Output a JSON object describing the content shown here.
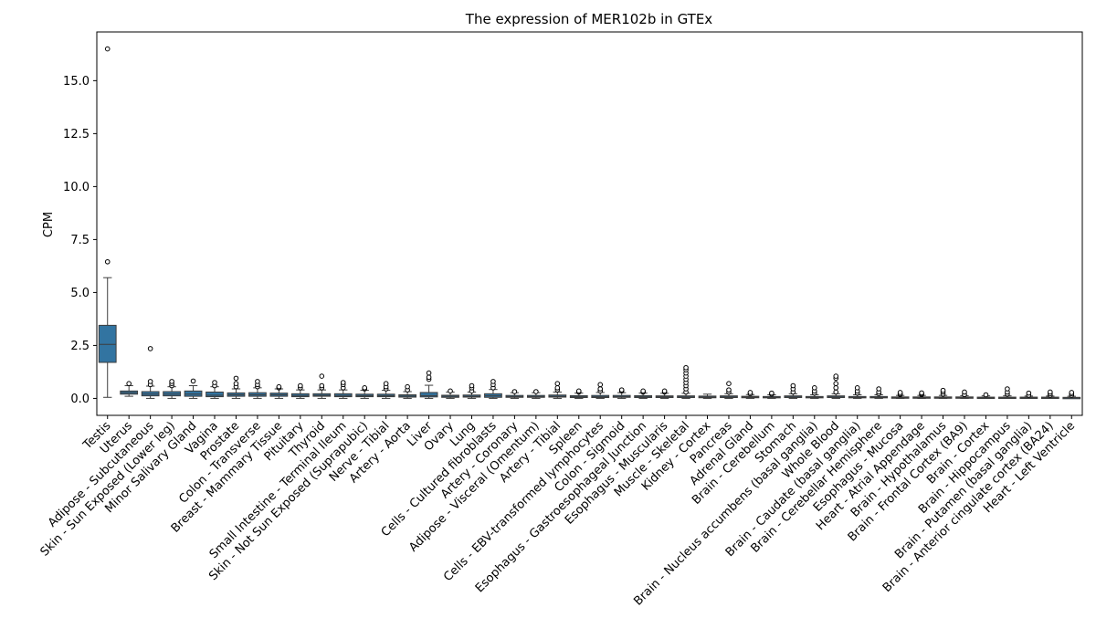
{
  "chart_data": {
    "type": "box",
    "title": "The expression of MER102b in GTEx",
    "xlabel": "",
    "ylabel": "CPM",
    "ylim": [
      -0.8,
      17.3
    ],
    "yticks": [
      0.0,
      2.5,
      5.0,
      7.5,
      10.0,
      12.5,
      15.0
    ],
    "ytick_labels": [
      "0.0",
      "2.5",
      "5.0",
      "7.5",
      "10.0",
      "12.5",
      "15.0"
    ],
    "box_color": "#3274a1",
    "grid": false,
    "categories": [
      "Testis",
      "Uterus",
      "Adipose - Subcutaneous",
      "Skin - Sun Exposed (Lower leg)",
      "Minor Salivary Gland",
      "Vagina",
      "Prostate",
      "Colon - Transverse",
      "Breast - Mammary Tissue",
      "Pituitary",
      "Thyroid",
      "Small Intestine - Terminal Ileum",
      "Skin - Not Sun Exposed (Suprapubic)",
      "Nerve - Tibial",
      "Artery - Aorta",
      "Liver",
      "Ovary",
      "Lung",
      "Cells - Cultured fibroblasts",
      "Artery - Coronary",
      "Adipose - Visceral (Omentum)",
      "Artery - Tibial",
      "Spleen",
      "Cells - EBV-transformed lymphocytes",
      "Colon - Sigmoid",
      "Esophagus - Gastroesophageal Junction",
      "Esophagus - Muscularis",
      "Muscle - Skeletal",
      "Kidney - Cortex",
      "Pancreas",
      "Adrenal Gland",
      "Brain - Cerebellum",
      "Stomach",
      "Brain - Nucleus accumbens (basal ganglia)",
      "Whole Blood",
      "Brain - Caudate (basal ganglia)",
      "Brain - Cerebellar Hemisphere",
      "Esophagus - Mucosa",
      "Heart - Atrial Appendage",
      "Brain - Hypothalamus",
      "Brain - Frontal Cortex (BA9)",
      "Brain - Cortex",
      "Brain - Hippocampus",
      "Brain - Putamen (basal ganglia)",
      "Brain - Anterior cingulate cortex (BA24)",
      "Heart - Left Ventricle"
    ],
    "boxes": [
      {
        "whislo": 0.05,
        "q1": 1.7,
        "med": 2.55,
        "q3": 3.45,
        "whishi": 5.7,
        "fliers": [
          6.45,
          16.5
        ]
      },
      {
        "whislo": 0.1,
        "q1": 0.2,
        "med": 0.27,
        "q3": 0.35,
        "whishi": 0.6,
        "fliers": [
          0.7
        ]
      },
      {
        "whislo": 0.0,
        "q1": 0.12,
        "med": 0.2,
        "q3": 0.32,
        "whishi": 0.58,
        "fliers": [
          0.65,
          0.8,
          2.35
        ]
      },
      {
        "whislo": 0.0,
        "q1": 0.12,
        "med": 0.2,
        "q3": 0.32,
        "whishi": 0.55,
        "fliers": [
          0.6,
          0.7,
          0.8
        ]
      },
      {
        "whislo": 0.0,
        "q1": 0.1,
        "med": 0.2,
        "q3": 0.35,
        "whishi": 0.6,
        "fliers": [
          0.82
        ]
      },
      {
        "whislo": 0.0,
        "q1": 0.08,
        "med": 0.15,
        "q3": 0.3,
        "whishi": 0.55,
        "fliers": [
          0.6,
          0.75
        ]
      },
      {
        "whislo": 0.0,
        "q1": 0.1,
        "med": 0.17,
        "q3": 0.26,
        "whishi": 0.45,
        "fliers": [
          0.55,
          0.7,
          0.95
        ]
      },
      {
        "whislo": 0.0,
        "q1": 0.1,
        "med": 0.17,
        "q3": 0.27,
        "whishi": 0.5,
        "fliers": [
          0.55,
          0.65,
          0.8
        ]
      },
      {
        "whislo": 0.0,
        "q1": 0.1,
        "med": 0.17,
        "q3": 0.25,
        "whishi": 0.45,
        "fliers": [
          0.5,
          0.55
        ]
      },
      {
        "whislo": 0.0,
        "q1": 0.08,
        "med": 0.14,
        "q3": 0.22,
        "whishi": 0.4,
        "fliers": [
          0.5,
          0.6
        ]
      },
      {
        "whislo": 0.0,
        "q1": 0.1,
        "med": 0.15,
        "q3": 0.22,
        "whishi": 0.4,
        "fliers": [
          0.5,
          0.6,
          1.05
        ]
      },
      {
        "whislo": 0.0,
        "q1": 0.08,
        "med": 0.14,
        "q3": 0.22,
        "whishi": 0.4,
        "fliers": [
          0.5,
          0.65,
          0.75
        ]
      },
      {
        "whislo": 0.0,
        "q1": 0.08,
        "med": 0.13,
        "q3": 0.2,
        "whishi": 0.38,
        "fliers": [
          0.45,
          0.5
        ]
      },
      {
        "whislo": 0.0,
        "q1": 0.08,
        "med": 0.13,
        "q3": 0.2,
        "whishi": 0.38,
        "fliers": [
          0.45,
          0.55,
          0.7
        ]
      },
      {
        "whislo": 0.0,
        "q1": 0.06,
        "med": 0.11,
        "q3": 0.17,
        "whishi": 0.32,
        "fliers": [
          0.4,
          0.55
        ]
      },
      {
        "whislo": 0.0,
        "q1": 0.07,
        "med": 0.13,
        "q3": 0.28,
        "whishi": 0.62,
        "fliers": [
          0.9,
          1.0,
          1.2
        ]
      },
      {
        "whislo": 0.0,
        "q1": 0.05,
        "med": 0.1,
        "q3": 0.15,
        "whishi": 0.3,
        "fliers": [
          0.35
        ]
      },
      {
        "whislo": 0.0,
        "q1": 0.06,
        "med": 0.1,
        "q3": 0.16,
        "whishi": 0.3,
        "fliers": [
          0.35,
          0.5,
          0.6
        ]
      },
      {
        "whislo": 0.0,
        "q1": 0.05,
        "med": 0.12,
        "q3": 0.22,
        "whishi": 0.42,
        "fliers": [
          0.5,
          0.65,
          0.8
        ]
      },
      {
        "whislo": 0.0,
        "q1": 0.05,
        "med": 0.09,
        "q3": 0.14,
        "whishi": 0.27,
        "fliers": [
          0.32
        ]
      },
      {
        "whislo": 0.0,
        "q1": 0.05,
        "med": 0.09,
        "q3": 0.14,
        "whishi": 0.27,
        "fliers": [
          0.32
        ]
      },
      {
        "whislo": 0.0,
        "q1": 0.06,
        "med": 0.1,
        "q3": 0.16,
        "whishi": 0.3,
        "fliers": [
          0.4,
          0.5,
          0.7
        ]
      },
      {
        "whislo": 0.0,
        "q1": 0.04,
        "med": 0.08,
        "q3": 0.13,
        "whishi": 0.25,
        "fliers": [
          0.3,
          0.35
        ]
      },
      {
        "whislo": 0.0,
        "q1": 0.04,
        "med": 0.08,
        "q3": 0.14,
        "whishi": 0.28,
        "fliers": [
          0.35,
          0.45,
          0.65
        ]
      },
      {
        "whislo": 0.0,
        "q1": 0.05,
        "med": 0.09,
        "q3": 0.14,
        "whishi": 0.27,
        "fliers": [
          0.35,
          0.4
        ]
      },
      {
        "whislo": 0.0,
        "q1": 0.04,
        "med": 0.08,
        "q3": 0.13,
        "whishi": 0.25,
        "fliers": [
          0.3,
          0.35
        ]
      },
      {
        "whislo": 0.0,
        "q1": 0.04,
        "med": 0.08,
        "q3": 0.12,
        "whishi": 0.24,
        "fliers": [
          0.3,
          0.35
        ]
      },
      {
        "whislo": 0.0,
        "q1": 0.04,
        "med": 0.07,
        "q3": 0.12,
        "whishi": 0.24,
        "fliers": [
          0.3,
          0.45,
          0.6,
          0.75,
          0.9,
          1.05,
          1.2,
          1.35,
          1.45
        ]
      },
      {
        "whislo": 0.0,
        "q1": 0.03,
        "med": 0.06,
        "q3": 0.11,
        "whishi": 0.2,
        "fliers": []
      },
      {
        "whislo": 0.0,
        "q1": 0.04,
        "med": 0.07,
        "q3": 0.12,
        "whishi": 0.22,
        "fliers": [
          0.3,
          0.4,
          0.7
        ]
      },
      {
        "whislo": 0.0,
        "q1": 0.03,
        "med": 0.06,
        "q3": 0.1,
        "whishi": 0.18,
        "fliers": [
          0.22,
          0.28
        ]
      },
      {
        "whislo": 0.0,
        "q1": 0.03,
        "med": 0.05,
        "q3": 0.09,
        "whishi": 0.17,
        "fliers": [
          0.2,
          0.25
        ]
      },
      {
        "whislo": 0.0,
        "q1": 0.04,
        "med": 0.07,
        "q3": 0.12,
        "whishi": 0.22,
        "fliers": [
          0.3,
          0.45,
          0.6
        ]
      },
      {
        "whislo": 0.0,
        "q1": 0.03,
        "med": 0.05,
        "q3": 0.09,
        "whishi": 0.17,
        "fliers": [
          0.25,
          0.35,
          0.5
        ]
      },
      {
        "whislo": 0.0,
        "q1": 0.04,
        "med": 0.07,
        "q3": 0.12,
        "whishi": 0.22,
        "fliers": [
          0.3,
          0.5,
          0.7,
          0.95,
          1.05
        ]
      },
      {
        "whislo": 0.0,
        "q1": 0.03,
        "med": 0.05,
        "q3": 0.09,
        "whishi": 0.17,
        "fliers": [
          0.25,
          0.35,
          0.5
        ]
      },
      {
        "whislo": 0.0,
        "q1": 0.03,
        "med": 0.05,
        "q3": 0.09,
        "whishi": 0.17,
        "fliers": [
          0.22,
          0.3,
          0.45
        ]
      },
      {
        "whislo": 0.0,
        "q1": 0.02,
        "med": 0.04,
        "q3": 0.07,
        "whishi": 0.14,
        "fliers": [
          0.18,
          0.22,
          0.28
        ]
      },
      {
        "whislo": 0.0,
        "q1": 0.02,
        "med": 0.04,
        "q3": 0.07,
        "whishi": 0.14,
        "fliers": [
          0.18,
          0.22,
          0.26
        ]
      },
      {
        "whislo": 0.0,
        "q1": 0.02,
        "med": 0.04,
        "q3": 0.07,
        "whishi": 0.14,
        "fliers": [
          0.2,
          0.3,
          0.38
        ]
      },
      {
        "whislo": 0.0,
        "q1": 0.02,
        "med": 0.04,
        "q3": 0.07,
        "whishi": 0.13,
        "fliers": [
          0.18,
          0.3
        ]
      },
      {
        "whislo": 0.0,
        "q1": 0.02,
        "med": 0.03,
        "q3": 0.06,
        "whishi": 0.12,
        "fliers": [
          0.17
        ]
      },
      {
        "whislo": 0.0,
        "q1": 0.02,
        "med": 0.03,
        "q3": 0.06,
        "whishi": 0.12,
        "fliers": [
          0.2,
          0.3,
          0.45
        ]
      },
      {
        "whislo": 0.0,
        "q1": 0.02,
        "med": 0.03,
        "q3": 0.06,
        "whishi": 0.11,
        "fliers": [
          0.15,
          0.25
        ]
      },
      {
        "whislo": 0.0,
        "q1": 0.02,
        "med": 0.03,
        "q3": 0.06,
        "whishi": 0.11,
        "fliers": [
          0.15,
          0.22,
          0.3
        ]
      },
      {
        "whislo": 0.0,
        "q1": 0.02,
        "med": 0.03,
        "q3": 0.05,
        "whishi": 0.1,
        "fliers": [
          0.15,
          0.22,
          0.28
        ]
      }
    ]
  }
}
